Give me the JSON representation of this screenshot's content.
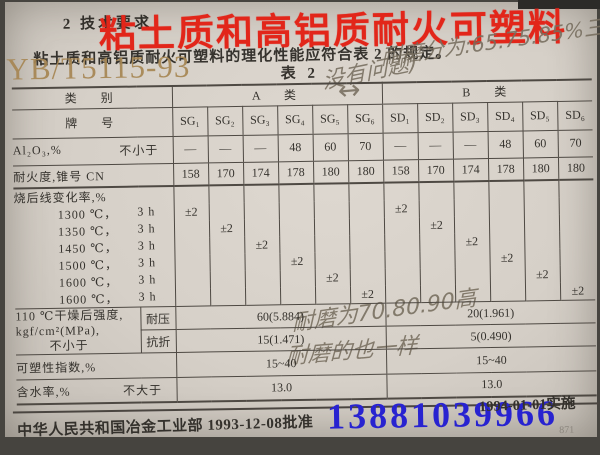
{
  "page": {
    "section_heading": "2  技术要求",
    "intro": "粘土质和高铝质耐火可塑料的理化性能应符合表 2 的规定。",
    "table_caption": "表 2",
    "page_number": "871"
  },
  "overlays": {
    "red_title": "粘土质和高铝质耐火可塑料",
    "watermark_standard_code": "YB/T5115-93",
    "blue_phone_number": "13881039966",
    "red_color": "#e2261a",
    "blue_color": "#2823d0",
    "watermark_color": "#a68652"
  },
  "handwritten_notes": {
    "note_top_right": "耐磨分为:65.75.85%三种",
    "note_near_caption": "没有问题)",
    "arrow": "↔",
    "note_middle": "耐磨为70.80.90高",
    "note_lower": "耐磨的也一样"
  },
  "footer": {
    "approval": "中华人民共和国冶金工业部 1993-12-08批准",
    "implementation": "1994-01-01实施"
  },
  "table": {
    "category_label": "类　别",
    "class_a_label": "A　类",
    "class_b_label": "B　类",
    "grade_label": "牌　号",
    "grades": [
      "SG₁",
      "SG₂",
      "SG₃",
      "SG₄",
      "SG₅",
      "SG₆",
      "SD₁",
      "SD₂",
      "SD₃",
      "SD₄",
      "SD₅",
      "SD₆"
    ],
    "rows": {
      "al2o3": {
        "label": "Al₂O₃,%",
        "qualifier": "不小于",
        "values": [
          "—",
          "—",
          "—",
          "48",
          "60",
          "70",
          "—",
          "—",
          "—",
          "48",
          "60",
          "70"
        ]
      },
      "refractoriness": {
        "label": "耐火度,锥号 CN",
        "values": [
          "158",
          "170",
          "174",
          "178",
          "180",
          "180",
          "158",
          "170",
          "174",
          "178",
          "180",
          "180"
        ]
      },
      "linear_change": {
        "label": "烧后线变化率,%",
        "sub_rows": [
          {
            "condition": "1300 ℃，",
            "duration": "3 h",
            "value": "±2",
            "cols": [
              0,
              6
            ]
          },
          {
            "condition": "1350 ℃，",
            "duration": "3 h",
            "value": "±2",
            "cols": [
              1,
              7
            ]
          },
          {
            "condition": "1450 ℃，",
            "duration": "3 h",
            "value": "±2",
            "cols": [
              2,
              8
            ]
          },
          {
            "condition": "1500 ℃，",
            "duration": "3 h",
            "value": "±2",
            "cols": [
              3,
              9
            ]
          },
          {
            "condition": "1600 ℃，",
            "duration": "3 h",
            "value": "±2",
            "cols": [
              4,
              10
            ]
          },
          {
            "condition": "1600 ℃，",
            "duration": "3 h",
            "value": "±2",
            "cols": [
              5,
              11
            ]
          }
        ]
      },
      "strength": {
        "label_line1": "110 ℃干燥后强度,",
        "label_line2": "kgf/cm²(MPa),",
        "label_line3": "不小于",
        "compressive": {
          "sub_label": "耐压",
          "class_a": "60(5.884)",
          "class_b": "20(1.961)"
        },
        "flexural": {
          "sub_label": "抗折",
          "class_a": "15(1.471)",
          "class_b": "5(0.490)"
        }
      },
      "plasticity": {
        "label": "可塑性指数,%",
        "class_a": "15~40",
        "class_b": "15~40"
      },
      "moisture": {
        "label": "含水率,%",
        "qualifier": "不大于",
        "class_a": "13.0",
        "class_b": "13.0"
      }
    }
  }
}
